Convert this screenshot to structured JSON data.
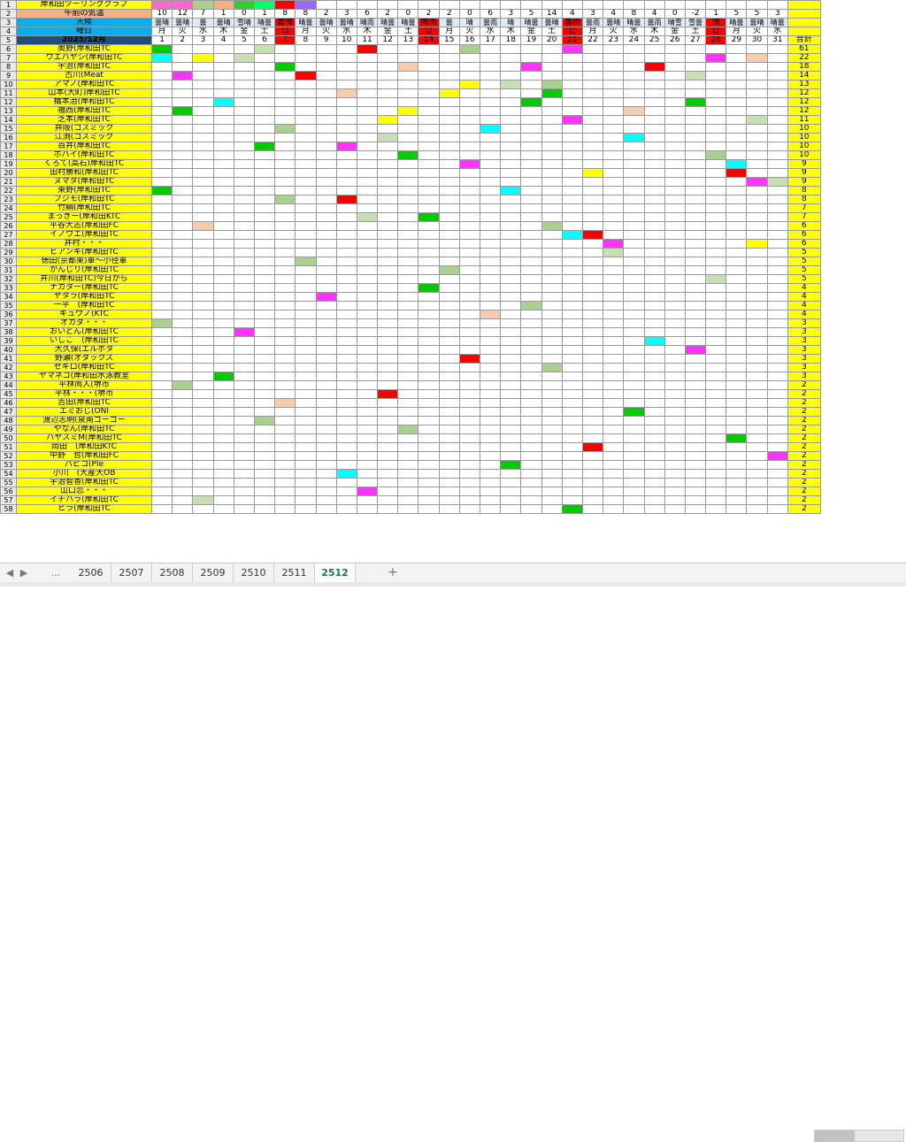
{
  "header": {
    "row1_title": "岸和田ツーリングクラブ",
    "row2_label": "午前の気温",
    "row3_label": "天候",
    "row4_label": "曜日",
    "row5_label": "2025/12月",
    "total_label": "合計",
    "temps": [
      "10",
      "12",
      "7",
      "1",
      "0",
      "1",
      "8",
      "8",
      "2",
      "3",
      "6",
      "2",
      "0",
      "2",
      "2",
      "0",
      "6",
      "3",
      "5",
      "14",
      "4",
      "3",
      "4",
      "8",
      "4",
      "0",
      "-2",
      "1",
      "5",
      "5",
      "3"
    ],
    "weather": [
      "曇晴",
      "曇晴",
      "曇",
      "曇晴",
      "雪晴",
      "晴曇",
      "曇晴",
      "晴曇",
      "曇晴",
      "曇晴",
      "晴雨",
      "晴曇",
      "晴曇",
      "晴雨",
      "曇",
      "晴",
      "曇雨",
      "晴",
      "晴曇",
      "曇晴",
      "曇雨",
      "曇雨",
      "曇晴",
      "晴曇",
      "曇雨",
      "晴雪",
      "雪曇",
      "晴",
      "晴曇",
      "曇晴",
      "晴曇"
    ],
    "dow": [
      "月",
      "火",
      "水",
      "木",
      "金",
      "土",
      "日",
      "月",
      "火",
      "水",
      "木",
      "金",
      "土",
      "日",
      "月",
      "火",
      "水",
      "木",
      "金",
      "土",
      "日",
      "月",
      "火",
      "水",
      "木",
      "金",
      "土",
      "日",
      "月",
      "火",
      "水"
    ],
    "days": [
      "1",
      "2",
      "3",
      "4",
      "5",
      "6",
      "7",
      "8",
      "9",
      "10",
      "11",
      "12",
      "13",
      "14",
      "15",
      "16",
      "17",
      "18",
      "19",
      "20",
      "21",
      "22",
      "23",
      "24",
      "25",
      "26",
      "27",
      "28",
      "29",
      "30",
      "31"
    ],
    "row1_swatches": [
      "#ff66cc",
      "#ff66cc",
      "#a9d08e",
      "#f4b183",
      "#33cc33",
      "#00ff66",
      "#ff0000",
      "#9966ff"
    ]
  },
  "rows": [
    {
      "name": "奥野(岸和田TC",
      "total": "61"
    },
    {
      "name": "ウエバヤシ(岸和田TC",
      "total": "22"
    },
    {
      "name": "宇治(岸和田TC",
      "total": "18"
    },
    {
      "name": "古川(Meat",
      "total": "14"
    },
    {
      "name": "アマノ(岸和田TC",
      "total": "13"
    },
    {
      "name": "山本(大町)岸和田TC",
      "total": "12"
    },
    {
      "name": "橋本治(岸和田TC",
      "total": "12"
    },
    {
      "name": "福西(岸和田TC",
      "total": "12"
    },
    {
      "name": "芝本(岸和田TC",
      "total": "11"
    },
    {
      "name": "井阪(コスミック",
      "total": "10"
    },
    {
      "name": "江渕(コスミック",
      "total": "10"
    },
    {
      "name": "百井(岸和田TC",
      "total": "10"
    },
    {
      "name": "ホバイ(岸和田TC",
      "total": "10"
    },
    {
      "name": "くろて(高石)岸和田TC",
      "total": "9"
    },
    {
      "name": "田村勝和(岸和田TC",
      "total": "9"
    },
    {
      "name": "ヌマタ(岸和田TC",
      "total": "9"
    },
    {
      "name": "東野(岸和田TC",
      "total": "8"
    },
    {
      "name": "フジモ(岸和田TC",
      "total": "8"
    },
    {
      "name": "竹綱(岸和田TC",
      "total": "7"
    },
    {
      "name": "まっきー(岸和田KTC",
      "total": "7"
    },
    {
      "name": "平谷大志(岸和田FC",
      "total": "6"
    },
    {
      "name": "イノウエ(岸和田TC",
      "total": "6"
    },
    {
      "name": "井村・・・",
      "total": "6"
    },
    {
      "name": "ビアンキ(岸和田TC",
      "total": "5"
    },
    {
      "name": "徳田(京都東)車〜小径車",
      "total": "5"
    },
    {
      "name": "かんじり(岸和田TC",
      "total": "5"
    },
    {
      "name": "井川(岸和田TC)今日から",
      "total": "5"
    },
    {
      "name": "ナカター(岸和田TC",
      "total": "4"
    },
    {
      "name": "ヤタラ(岸和田TC",
      "total": "4"
    },
    {
      "name": "一平　(岸和田TC",
      "total": "4"
    },
    {
      "name": "キュウノ(KTC",
      "total": "4"
    },
    {
      "name": "オカダ・・・",
      "total": "3"
    },
    {
      "name": "おいどん(岸和田TC",
      "total": "3"
    },
    {
      "name": "いしこ　(岸和田TC",
      "total": "3"
    },
    {
      "name": "大久保(エルボタ",
      "total": "3"
    },
    {
      "name": "野瀬(オダックス",
      "total": "3"
    },
    {
      "name": "セキロ(岸和田TC",
      "total": "3"
    },
    {
      "name": "ヤマネコ(岸和田水泳教室",
      "total": "3"
    },
    {
      "name": "平林尚人(堺市",
      "total": "2"
    },
    {
      "name": "平林・・・(堺市",
      "total": "2"
    },
    {
      "name": "吉田(岸和田TC",
      "total": "2"
    },
    {
      "name": "エミおじ(ONI",
      "total": "2"
    },
    {
      "name": "渡辺志明(泉南ゴーゴー",
      "total": "2"
    },
    {
      "name": "やなん(岸和田TC",
      "total": "2"
    },
    {
      "name": "ハヤスミM(岸和田TC",
      "total": "2"
    },
    {
      "name": "岡田　(岸和田KTC",
      "total": "2"
    },
    {
      "name": "中野　哲(岸和田FC",
      "total": "2"
    },
    {
      "name": "パピコ(Ple",
      "total": "2"
    },
    {
      "name": "小川　(大産大OB",
      "total": "2"
    },
    {
      "name": "宇治智香(岸和田TC",
      "total": "2"
    },
    {
      "name": "山口恋・・・",
      "total": "2"
    },
    {
      "name": "イチハラ(岸和田TC",
      "total": "2"
    },
    {
      "name": "ヒラ(岸和田TC",
      "total": "2"
    }
  ],
  "sheet_tabs": [
    "2506",
    "2507",
    "2508",
    "2509",
    "2510",
    "2511",
    "2512"
  ],
  "active_tab": "2512",
  "tab_nav": {
    "prev": "◀",
    "next": "▶",
    "more": "...",
    "add": "+"
  },
  "colors": {
    "green": "#00cc00",
    "red": "#ff0000",
    "yellow": "#ffff00",
    "cyan": "#00ffff",
    "magenta": "#ff33ff",
    "orange": "#ffc000",
    "pink": "#ffc7ce",
    "lightgreen": "#a9d08e",
    "peach": "#f8cbad",
    "lightcyan": "#9bdff2",
    "olive": "#c6e0b4",
    "darkgreen": "#00b050"
  }
}
